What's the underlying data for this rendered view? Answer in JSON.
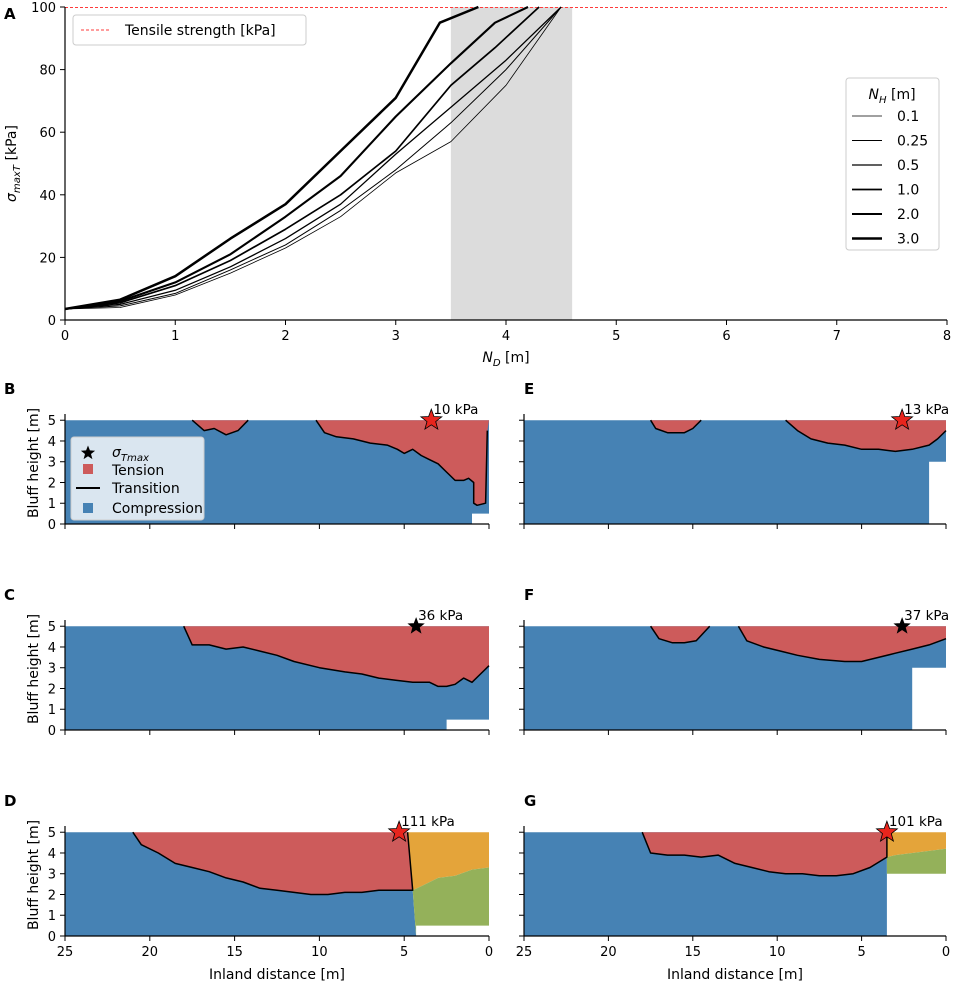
{
  "chart_data": [
    {
      "panel": "A",
      "type": "line",
      "xlabel": "N_D [m]",
      "ylabel": "σ_maxT [kPa]",
      "xlim": [
        0,
        8
      ],
      "ylim": [
        0,
        100
      ],
      "xticks": [
        "0",
        "1",
        "2",
        "3",
        "4",
        "5",
        "6",
        "7",
        "8"
      ],
      "yticks": [
        "0",
        "20",
        "40",
        "60",
        "80",
        "100"
      ],
      "shaded_band": [
        3.5,
        4.6
      ],
      "reference_line": {
        "label": "Tensile strength [kPa]",
        "value": 100,
        "color": "#ff3b3b"
      },
      "legend_title": "N_H [m]",
      "series": [
        {
          "name": "0.1",
          "x": [
            0,
            0.5,
            1,
            1.5,
            2,
            2.5,
            3,
            3.5,
            4,
            4.5
          ],
          "y": [
            3.5,
            4,
            8,
            15,
            23,
            33,
            47,
            57,
            75,
            100
          ]
        },
        {
          "name": "0.25",
          "x": [
            0,
            0.5,
            1,
            1.5,
            2,
            2.5,
            3,
            3.5,
            4,
            4.5
          ],
          "y": [
            3.5,
            4.5,
            8.5,
            16,
            24,
            35,
            48,
            63,
            80,
            100
          ]
        },
        {
          "name": "0.5",
          "x": [
            0,
            0.5,
            1,
            1.5,
            2,
            2.5,
            3,
            3.5,
            4,
            4.5
          ],
          "y": [
            3.5,
            5,
            9.5,
            17,
            26,
            37,
            53,
            68,
            83,
            100
          ]
        },
        {
          "name": "1.0",
          "x": [
            0,
            0.5,
            1,
            1.5,
            2,
            2.5,
            3,
            3.5,
            3.9,
            4.3
          ],
          "y": [
            3.5,
            5.5,
            11,
            19,
            29,
            40,
            54,
            75,
            87,
            100
          ]
        },
        {
          "name": "2.0",
          "x": [
            0,
            0.5,
            1,
            1.5,
            2,
            2.5,
            3,
            3.5,
            3.9,
            4.2
          ],
          "y": [
            3.5,
            6,
            12,
            21,
            33,
            46,
            65,
            82,
            95,
            100
          ]
        },
        {
          "name": "3.0",
          "x": [
            0,
            0.5,
            1,
            1.5,
            2,
            2.5,
            3,
            3.4,
            3.75
          ],
          "y": [
            3.5,
            6.5,
            14,
            26,
            37,
            54,
            71,
            95,
            100
          ]
        }
      ]
    },
    {
      "panel": "B",
      "type": "area",
      "xlim": [
        25,
        0
      ],
      "ylim": [
        0,
        5.3
      ],
      "yticks": [
        "0",
        "1",
        "2",
        "3",
        "4",
        "5"
      ],
      "ylabel": "Bluff height [m]",
      "annotation": "10 kPa",
      "star": [
        3.4,
        5.0
      ],
      "legend": [
        "σ_Tmax",
        "Tension",
        "Transition",
        "Compression"
      ],
      "regions": {
        "compression_top": [
          [
            25,
            5
          ],
          [
            0,
            5
          ],
          [
            0,
            0.5
          ],
          [
            1.0,
            0.5
          ],
          [
            1.0,
            0
          ],
          [
            25,
            0
          ]
        ],
        "tension": [
          [
            [
              17.5,
              5
            ],
            [
              16.8,
              4.5
            ],
            [
              16.2,
              4.6
            ],
            [
              15.5,
              4.3
            ],
            [
              14.8,
              4.5
            ],
            [
              14.2,
              5
            ]
          ],
          [
            [
              10.2,
              5
            ],
            [
              9.7,
              4.4
            ],
            [
              9,
              4.2
            ],
            [
              8,
              4.1
            ],
            [
              7,
              3.9
            ],
            [
              6,
              3.8
            ],
            [
              5.4,
              3.6
            ],
            [
              5,
              3.4
            ],
            [
              4.5,
              3.6
            ],
            [
              4,
              3.3
            ],
            [
              3.5,
              3.1
            ],
            [
              3,
              2.9
            ],
            [
              2.5,
              2.5
            ],
            [
              2,
              2.1
            ],
            [
              1.5,
              2.1
            ],
            [
              1.2,
              2.2
            ],
            [
              0.9,
              2.0
            ],
            [
              0.9,
              1.0
            ],
            [
              0.7,
              0.9
            ],
            [
              0.2,
              1.0
            ],
            [
              0.1,
              4.5
            ],
            [
              0,
              5
            ]
          ]
        ]
      }
    },
    {
      "panel": "C",
      "type": "area",
      "xlim": [
        25,
        0
      ],
      "ylim": [
        0,
        5.3
      ],
      "yticks": [
        "0",
        "1",
        "2",
        "3",
        "4",
        "5"
      ],
      "ylabel": "Bluff height [m]",
      "annotation": "36 kPa",
      "star": [
        4.3,
        5.0
      ],
      "regions": {
        "compression_top": [
          [
            25,
            5
          ],
          [
            0,
            5
          ],
          [
            0,
            0.5
          ],
          [
            2.5,
            0.5
          ],
          [
            2.5,
            0
          ],
          [
            25,
            0
          ]
        ],
        "tension": [
          [
            [
              18,
              5
            ],
            [
              17.5,
              4.1
            ],
            [
              16.5,
              4.1
            ],
            [
              15.5,
              3.9
            ],
            [
              14.5,
              4.0
            ],
            [
              13.5,
              3.8
            ],
            [
              12.5,
              3.6
            ],
            [
              11.5,
              3.3
            ],
            [
              10,
              3.0
            ],
            [
              8.5,
              2.8
            ],
            [
              7.5,
              2.7
            ],
            [
              6.5,
              2.5
            ],
            [
              5.5,
              2.4
            ],
            [
              4.5,
              2.3
            ],
            [
              3.5,
              2.3
            ],
            [
              3,
              2.1
            ],
            [
              2.5,
              2.1
            ],
            [
              2,
              2.2
            ],
            [
              1.5,
              2.5
            ],
            [
              1,
              2.3
            ],
            [
              0.5,
              2.7
            ],
            [
              0,
              3.1
            ],
            [
              0,
              5
            ]
          ]
        ]
      }
    },
    {
      "panel": "D",
      "type": "area",
      "xlim": [
        25,
        0
      ],
      "ylim": [
        0,
        5.3
      ],
      "yticks": [
        "0",
        "1",
        "2",
        "3",
        "4",
        "5"
      ],
      "xticks": [
        "25",
        "20",
        "15",
        "10",
        "5",
        "0"
      ],
      "xlabel": "Inland distance [m]",
      "ylabel": "Bluff height [m]",
      "annotation": "111 kPa",
      "star": [
        5.3,
        5.0
      ],
      "regions": {
        "tension": [
          [
            [
              21,
              5
            ],
            [
              20.5,
              4.4
            ],
            [
              19.5,
              4.0
            ],
            [
              18.5,
              3.5
            ],
            [
              17.5,
              3.3
            ],
            [
              16.5,
              3.1
            ],
            [
              15.5,
              2.8
            ],
            [
              14.5,
              2.6
            ],
            [
              13.5,
              2.3
            ],
            [
              12.5,
              2.2
            ],
            [
              11.5,
              2.1
            ],
            [
              10.5,
              2.0
            ],
            [
              9.5,
              2.0
            ],
            [
              8.5,
              2.1
            ],
            [
              7.5,
              2.1
            ],
            [
              6.5,
              2.2
            ],
            [
              5.5,
              2.2
            ],
            [
              4.5,
              2.2
            ],
            [
              4.8,
              5
            ]
          ]
        ],
        "transition_orange": [
          [
            4.8,
            5
          ],
          [
            0,
            5
          ],
          [
            0,
            3.3
          ],
          [
            1,
            3.2
          ],
          [
            2,
            2.9
          ],
          [
            3,
            2.8
          ],
          [
            4,
            2.4
          ],
          [
            4.5,
            2.2
          ]
        ],
        "transition_green": [
          [
            4.5,
            2.2
          ],
          [
            4,
            2.4
          ],
          [
            3,
            2.8
          ],
          [
            2,
            2.9
          ],
          [
            1,
            3.2
          ],
          [
            0,
            3.3
          ],
          [
            0,
            0.5
          ],
          [
            4.3,
            0.5
          ],
          [
            4.3,
            0
          ]
        ]
      }
    },
    {
      "panel": "E",
      "type": "area",
      "xlim": [
        25,
        0
      ],
      "ylim": [
        0,
        5.3
      ],
      "yticks": [
        "0",
        "1",
        "2",
        "3",
        "4",
        "5"
      ],
      "annotation": "13 kPa",
      "star": [
        2.6,
        5.0
      ],
      "regions": {
        "compression_top": [
          [
            25,
            5
          ],
          [
            0,
            5
          ],
          [
            0,
            3
          ],
          [
            1,
            3
          ],
          [
            1,
            0
          ],
          [
            25,
            0
          ]
        ],
        "tension": [
          [
            [
              17.5,
              5
            ],
            [
              17.2,
              4.6
            ],
            [
              16.5,
              4.4
            ],
            [
              15.5,
              4.4
            ],
            [
              15,
              4.6
            ],
            [
              14.5,
              5
            ]
          ],
          [
            [
              9.5,
              5
            ],
            [
              8.8,
              4.5
            ],
            [
              8,
              4.1
            ],
            [
              7,
              3.9
            ],
            [
              6,
              3.8
            ],
            [
              5,
              3.6
            ],
            [
              4,
              3.6
            ],
            [
              3,
              3.5
            ],
            [
              2,
              3.6
            ],
            [
              1,
              3.8
            ],
            [
              0.5,
              4.1
            ],
            [
              0,
              4.5
            ],
            [
              0,
              5
            ]
          ]
        ]
      }
    },
    {
      "panel": "F",
      "type": "area",
      "xlim": [
        25,
        0
      ],
      "ylim": [
        0,
        5.3
      ],
      "yticks": [
        "0",
        "1",
        "2",
        "3",
        "4",
        "5"
      ],
      "annotation": "37 kPa",
      "star": [
        2.6,
        5.0
      ],
      "regions": {
        "compression_top": [
          [
            25,
            5
          ],
          [
            0,
            5
          ],
          [
            0,
            3
          ],
          [
            2,
            3
          ],
          [
            2,
            0
          ],
          [
            25,
            0
          ]
        ],
        "tension": [
          [
            [
              17.5,
              5
            ],
            [
              17.0,
              4.4
            ],
            [
              16.2,
              4.2
            ],
            [
              15.5,
              4.2
            ],
            [
              14.8,
              4.3
            ],
            [
              14.0,
              5
            ]
          ],
          [
            [
              12.3,
              5
            ],
            [
              11.8,
              4.3
            ],
            [
              10.8,
              4.0
            ],
            [
              9.8,
              3.8
            ],
            [
              8.8,
              3.6
            ],
            [
              7.5,
              3.4
            ],
            [
              6,
              3.3
            ],
            [
              5,
              3.3
            ],
            [
              4,
              3.5
            ],
            [
              3,
              3.7
            ],
            [
              2,
              3.9
            ],
            [
              1,
              4.1
            ],
            [
              0,
              4.4
            ],
            [
              0,
              5
            ]
          ]
        ]
      }
    },
    {
      "panel": "G",
      "type": "area",
      "xlim": [
        25,
        0
      ],
      "ylim": [
        0,
        5.3
      ],
      "yticks": [
        "0",
        "1",
        "2",
        "3",
        "4",
        "5"
      ],
      "xticks": [
        "25",
        "20",
        "15",
        "10",
        "5",
        "0"
      ],
      "xlabel": "Inland distance [m]",
      "annotation": "101 kPa",
      "star": [
        3.5,
        5.0
      ],
      "regions": {
        "compression_top": [
          [
            25,
            5
          ],
          [
            3.5,
            5
          ],
          [
            3.5,
            0
          ],
          [
            25,
            0
          ]
        ],
        "tension": [
          [
            [
              18,
              5
            ],
            [
              17.5,
              4.0
            ],
            [
              16.5,
              3.9
            ],
            [
              15.5,
              3.9
            ],
            [
              14.5,
              3.8
            ],
            [
              13.5,
              3.9
            ],
            [
              12.5,
              3.5
            ],
            [
              11.5,
              3.3
            ],
            [
              10.5,
              3.1
            ],
            [
              9.5,
              3.0
            ],
            [
              8.5,
              3.0
            ],
            [
              7.5,
              2.9
            ],
            [
              6.5,
              2.9
            ],
            [
              5.5,
              3.0
            ],
            [
              4.5,
              3.3
            ],
            [
              3.5,
              3.8
            ],
            [
              3.5,
              5
            ]
          ]
        ],
        "transition_orange": [
          [
            3.5,
            5
          ],
          [
            0,
            5
          ],
          [
            0,
            4.2
          ],
          [
            1,
            4.1
          ],
          [
            2,
            4.0
          ],
          [
            3,
            3.9
          ],
          [
            3.5,
            3.8
          ]
        ],
        "transition_green": [
          [
            3.5,
            3.8
          ],
          [
            3,
            3.9
          ],
          [
            2,
            4.0
          ],
          [
            1,
            4.1
          ],
          [
            0,
            4.2
          ],
          [
            0,
            3.0
          ],
          [
            3.5,
            3.0
          ]
        ]
      }
    }
  ],
  "legend_labels": {
    "tensile": "Tensile strength [kPa]",
    "nh_title": "N_H [m]",
    "sigma": "σ_Tmax",
    "tension": "Tension",
    "transition": "Transition",
    "compression": "Compression"
  },
  "colors": {
    "tension": "#cd5b5b",
    "compression": "#4682b4",
    "orange": "#e4a43a",
    "green": "#94b15a",
    "shade": "#dcdcdc",
    "tensile_line": "#ff3b3b",
    "star_red": "#e8251d"
  }
}
